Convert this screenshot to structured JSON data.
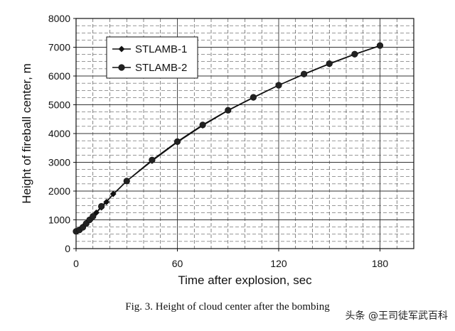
{
  "chart_data": {
    "type": "line",
    "title": "",
    "xlabel": "Time after explosion, sec",
    "ylabel": "Height of fireball center, m",
    "xlim": [
      0,
      200
    ],
    "ylim": [
      0,
      8000
    ],
    "x_ticks": [
      0,
      60,
      120,
      180
    ],
    "y_ticks": [
      0,
      1000,
      2000,
      3000,
      4000,
      5000,
      6000,
      7000,
      8000
    ],
    "grid": true,
    "legend_position": "top-left",
    "series": [
      {
        "name": "STLAMB-1",
        "marker": "diamond",
        "points": [
          [
            0,
            600
          ],
          [
            1,
            620
          ],
          [
            2,
            660
          ],
          [
            3,
            710
          ],
          [
            4,
            760
          ],
          [
            5,
            820
          ],
          [
            7,
            950
          ],
          [
            10,
            1120
          ],
          [
            12,
            1250
          ],
          [
            15,
            1430
          ],
          [
            18,
            1620
          ],
          [
            22,
            1900
          ],
          [
            30,
            2350
          ],
          [
            45,
            3050
          ],
          [
            60,
            3700
          ],
          [
            75,
            4280
          ],
          [
            90,
            4800
          ],
          [
            105,
            5250
          ],
          [
            120,
            5680
          ],
          [
            135,
            6060
          ],
          [
            150,
            6420
          ],
          [
            165,
            6750
          ],
          [
            180,
            7050
          ]
        ]
      },
      {
        "name": "STLAMB-2",
        "marker": "circle",
        "points": [
          [
            0,
            600
          ],
          [
            2,
            650
          ],
          [
            4,
            740
          ],
          [
            6,
            870
          ],
          [
            8,
            1000
          ],
          [
            10,
            1120
          ],
          [
            15,
            1470
          ],
          [
            30,
            2350
          ],
          [
            45,
            3080
          ],
          [
            60,
            3720
          ],
          [
            75,
            4300
          ],
          [
            90,
            4810
          ],
          [
            105,
            5260
          ],
          [
            120,
            5680
          ],
          [
            135,
            6070
          ],
          [
            150,
            6430
          ],
          [
            165,
            6760
          ],
          [
            180,
            7060
          ]
        ]
      }
    ]
  },
  "caption": "Fig. 3. Height of cloud center after the bombing",
  "watermark": "头条 @王司徒军武百科"
}
